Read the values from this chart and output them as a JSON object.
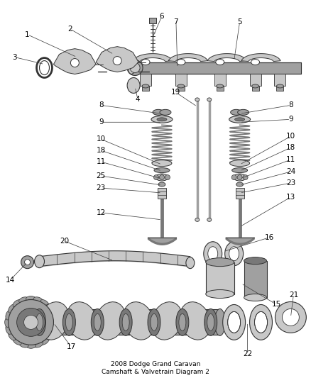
{
  "title": "2008 Dodge Grand Caravan\nCamshaft & Valvetrain Diagram 2",
  "background_color": "#ffffff",
  "line_color": "#333333",
  "text_color": "#000000",
  "fig_width": 4.38,
  "fig_height": 5.33,
  "dpi": 100,
  "gray1": "#c8c8c8",
  "gray2": "#a0a0a0",
  "gray3": "#787878",
  "gray4": "#e8e8e8"
}
